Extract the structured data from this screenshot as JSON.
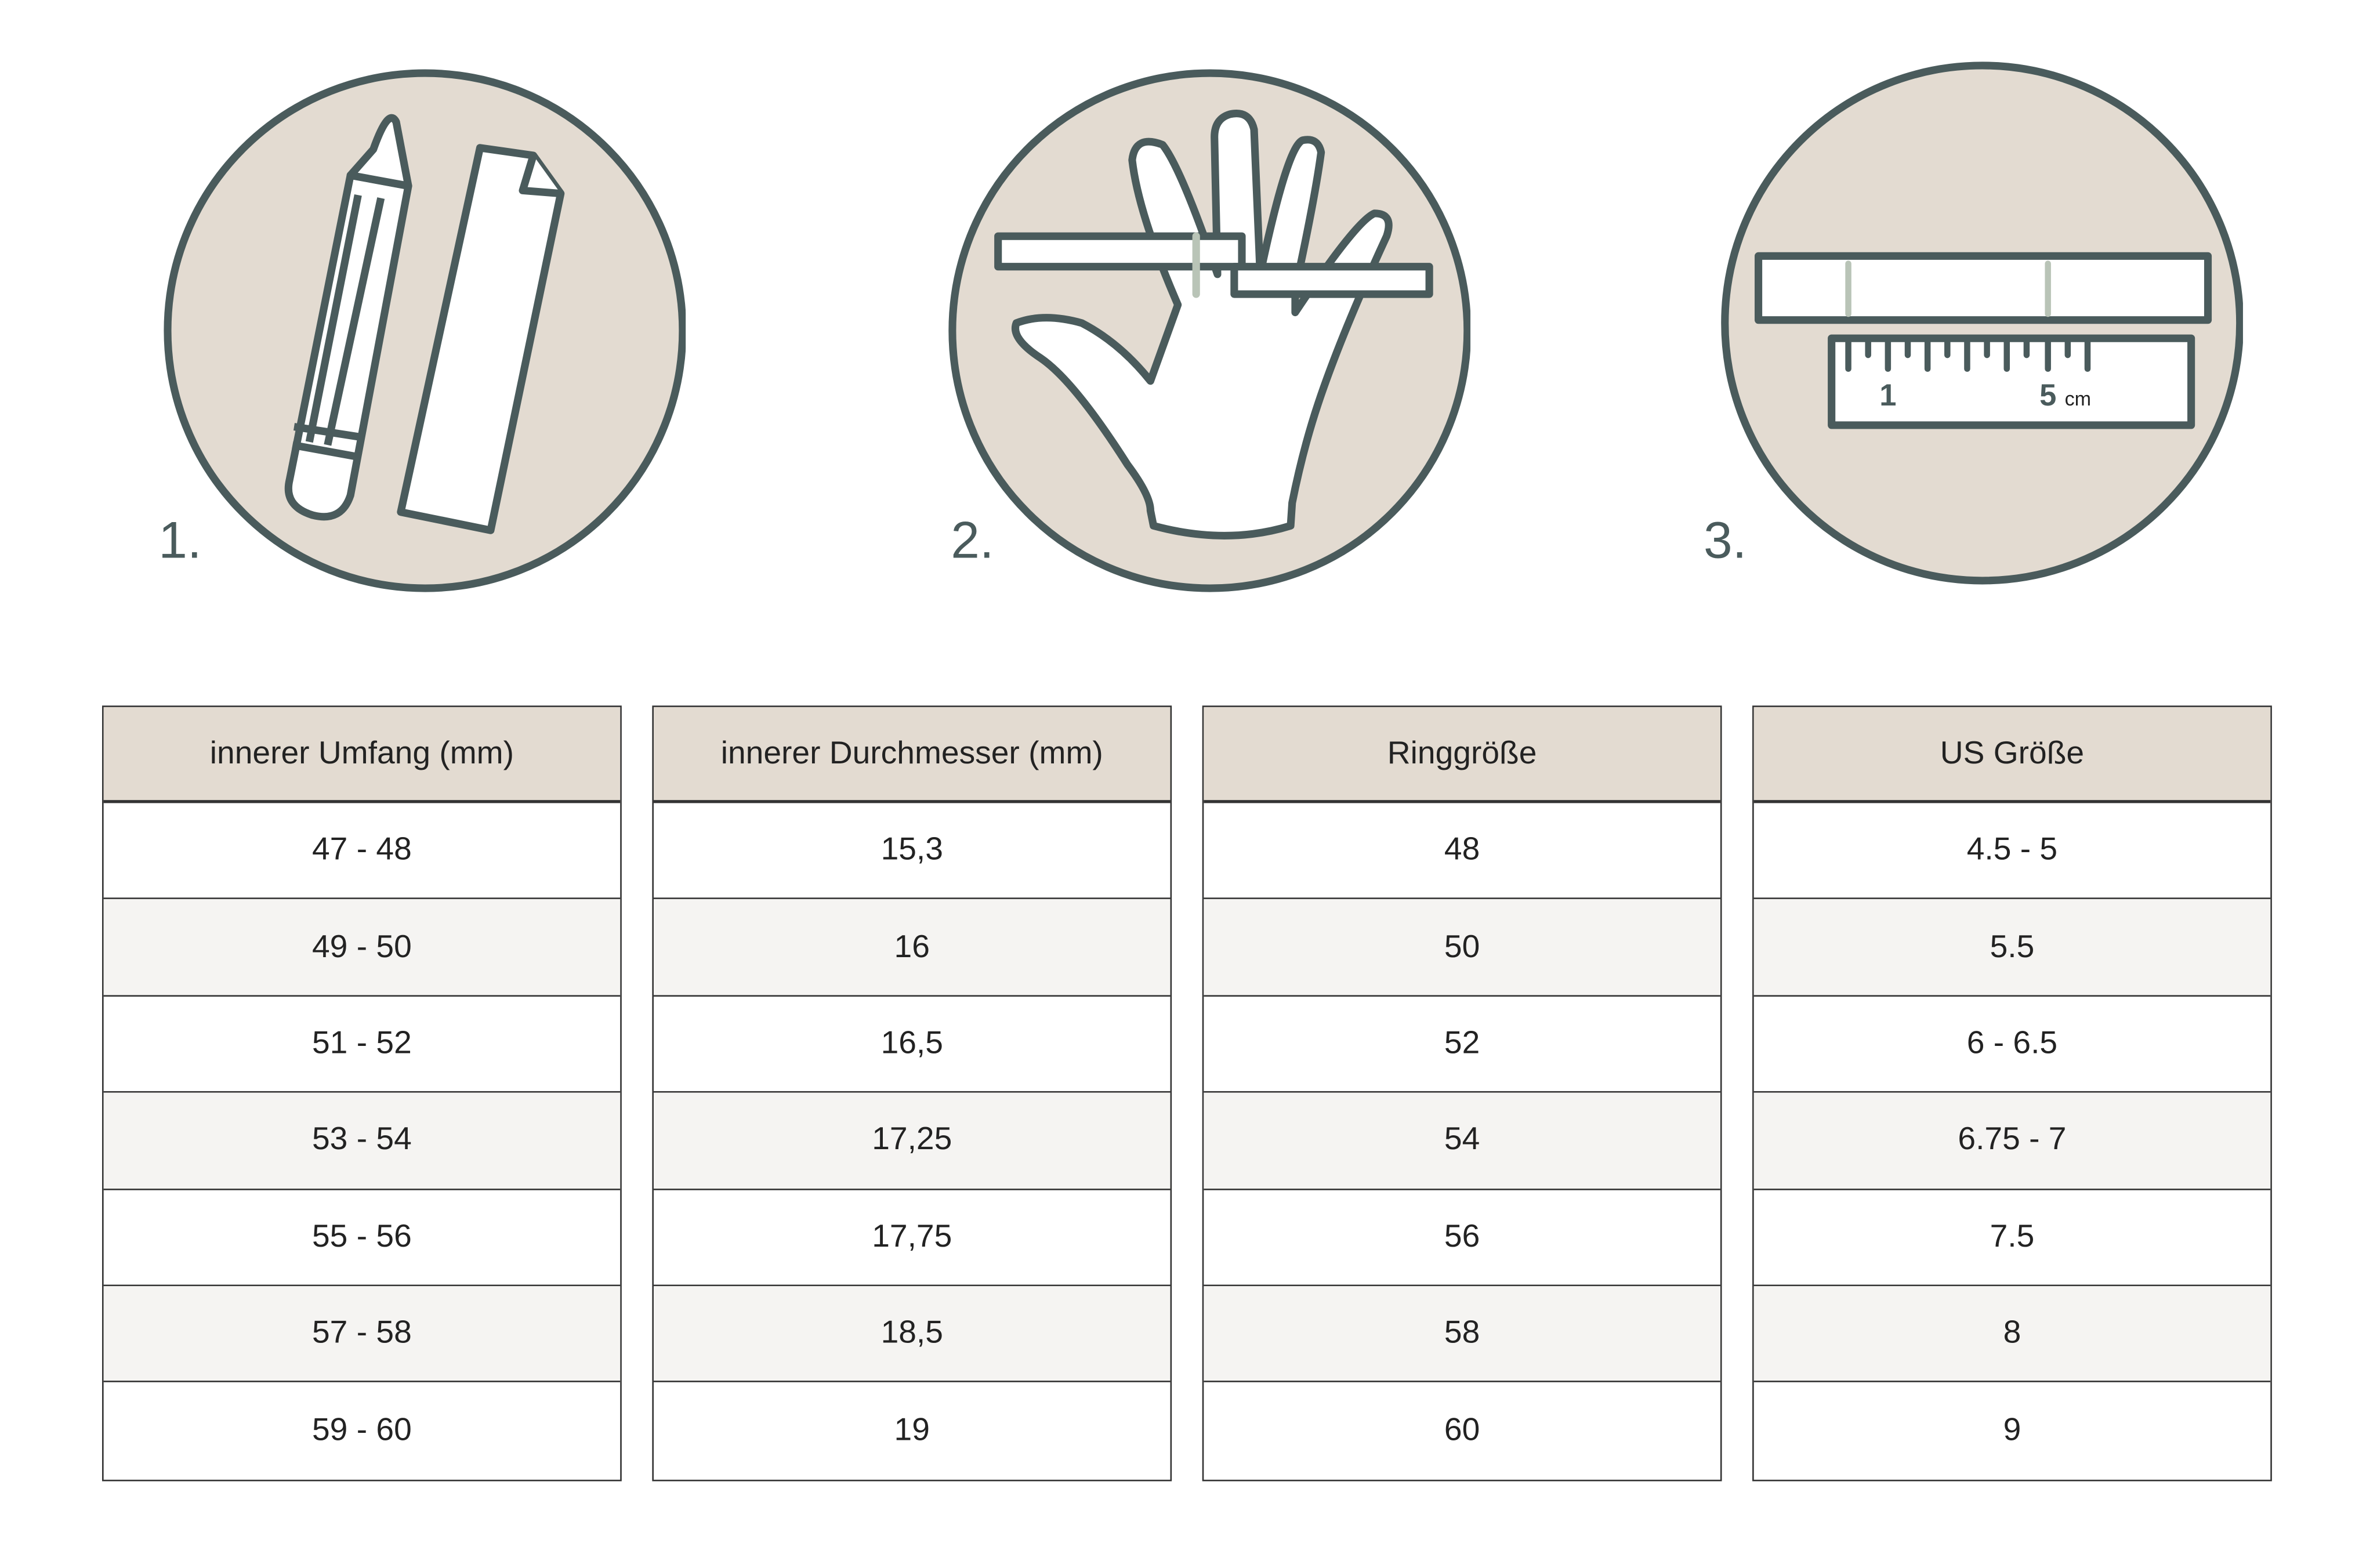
{
  "steps": [
    {
      "number": "1.",
      "icon": "pencil-and-paper-strip-icon"
    },
    {
      "number": "2.",
      "icon": "hand-with-paper-strip-icon"
    },
    {
      "number": "3.",
      "icon": "strip-and-ruler-icon",
      "ruler_labels": {
        "one": "1",
        "five": "5",
        "unit": "cm"
      }
    }
  ],
  "colors": {
    "stroke": "#4a5b5c",
    "circle_fill": "#e3dbd1",
    "header_fill": "#e3dbd1",
    "alt_row": "#f5f4f2",
    "mark": "#b9c4b7"
  },
  "table": {
    "columns": [
      {
        "header": "innerer Umfang (mm)",
        "values": [
          "47 - 48",
          "49 - 50",
          "51 - 52",
          "53 - 54",
          "55 - 56",
          "57 - 58",
          "59 - 60"
        ]
      },
      {
        "header": "innerer Durchmesser (mm)",
        "values": [
          "15,3",
          "16",
          "16,5",
          "17,25",
          "17,75",
          "18,5",
          "19"
        ]
      },
      {
        "header": "Ringgröße",
        "values": [
          "48",
          "50",
          "52",
          "54",
          "56",
          "58",
          "60"
        ]
      },
      {
        "header": "US Größe",
        "values": [
          "4.5 - 5",
          "5.5",
          "6 - 6.5",
          "6.75 - 7",
          "7.5",
          "8",
          "9"
        ]
      }
    ]
  }
}
